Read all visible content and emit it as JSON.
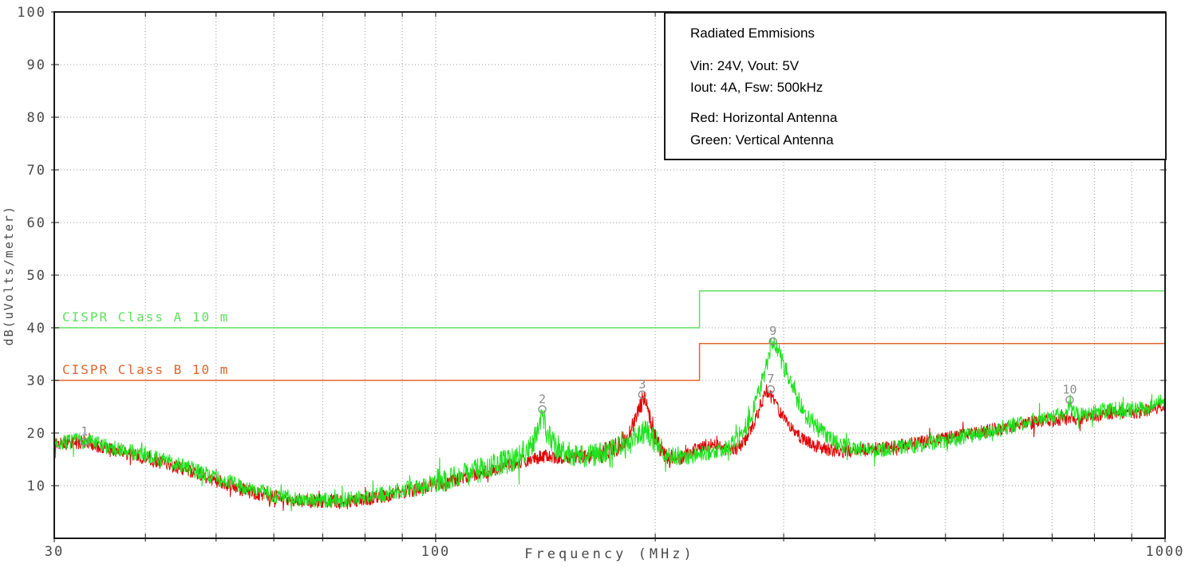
{
  "chart_data": {
    "type": "line",
    "title": "Radiated Emmisions",
    "info_box": {
      "title": "Radiated Emmisions",
      "lines": [
        "Vin: 24V, Vout: 5V",
        "Iout: 4A, Fsw: 500kHz",
        "Red: Horizontal Antenna",
        "Green: Vertical Antenna"
      ]
    },
    "x_axis": {
      "label": "Frequency (MHz)",
      "scale": "log",
      "min": 30,
      "max": 1000,
      "tick_labels": [
        30,
        100,
        1000
      ],
      "grid": [
        40,
        50,
        60,
        70,
        80,
        90,
        100,
        200,
        300,
        400,
        500,
        600,
        700,
        800,
        900
      ]
    },
    "y_axis": {
      "label": "dB(uVolts/meter)",
      "min": 0,
      "max": 100,
      "tick_labels": [
        10,
        20,
        30,
        40,
        50,
        60,
        70,
        80,
        90,
        100
      ],
      "grid": [
        10,
        20,
        30,
        40,
        50,
        60,
        70,
        80,
        90
      ]
    },
    "colors": {
      "grid": "#999999",
      "axis_text": "#4a4a4a",
      "border": "#1a1a1a",
      "marker": "#8c8c8c",
      "red_trace": "#e00000",
      "green_trace": "#1de21d",
      "cispr_a": "#5fe05f",
      "cispr_b": "#e0662e"
    },
    "limits": [
      {
        "id": "cispr-class-a",
        "name": "CISPR Class A 10 m",
        "color": "#5fe05f",
        "points": [
          [
            30,
            40
          ],
          [
            230,
            40
          ],
          [
            230,
            47
          ],
          [
            1000,
            47
          ]
        ]
      },
      {
        "id": "cispr-class-b",
        "name": "CISPR Class B 10 m",
        "color": "#e0662e",
        "points": [
          [
            30,
            30
          ],
          [
            230,
            30
          ],
          [
            230,
            37
          ],
          [
            1000,
            37
          ]
        ]
      }
    ],
    "series": [
      {
        "id": "horizontal-antenna",
        "name": "Horizontal Antenna",
        "color": "#e00000",
        "seed": 13,
        "noise": 1.3,
        "noise_zones": [
          {
            "from": 168,
            "to": 212,
            "mult": 1.5
          }
        ],
        "anchors": [
          [
            30,
            18
          ],
          [
            33,
            18.2
          ],
          [
            36,
            16.8
          ],
          [
            40,
            15.2
          ],
          [
            45,
            13.2
          ],
          [
            50,
            11
          ],
          [
            55,
            9
          ],
          [
            60,
            7.8
          ],
          [
            65,
            7.2
          ],
          [
            70,
            6.9
          ],
          [
            75,
            7
          ],
          [
            80,
            7.4
          ],
          [
            85,
            8
          ],
          [
            90,
            8.8
          ],
          [
            95,
            9.4
          ],
          [
            100,
            10.2
          ],
          [
            110,
            11.6
          ],
          [
            120,
            13
          ],
          [
            130,
            14.4
          ],
          [
            140,
            15.6
          ],
          [
            150,
            15.4
          ],
          [
            160,
            15.6
          ],
          [
            170,
            16.2
          ],
          [
            178,
            17.5
          ],
          [
            184,
            19.5
          ],
          [
            189,
            23
          ],
          [
            193,
            27
          ],
          [
            196,
            24
          ],
          [
            200,
            19.5
          ],
          [
            205,
            16.2
          ],
          [
            210,
            15
          ],
          [
            216,
            15.2
          ],
          [
            224,
            16.2
          ],
          [
            232,
            17.6
          ],
          [
            240,
            18
          ],
          [
            248,
            17
          ],
          [
            256,
            16.6
          ],
          [
            264,
            18
          ],
          [
            272,
            21.5
          ],
          [
            279,
            25.5
          ],
          [
            284,
            28
          ],
          [
            290,
            26.5
          ],
          [
            297,
            24
          ],
          [
            305,
            21.5
          ],
          [
            315,
            19.5
          ],
          [
            327,
            18
          ],
          [
            340,
            17
          ],
          [
            355,
            16.6
          ],
          [
            375,
            16.6
          ],
          [
            400,
            17
          ],
          [
            430,
            17.6
          ],
          [
            460,
            18.2
          ],
          [
            500,
            19
          ],
          [
            540,
            19.8
          ],
          [
            580,
            20.6
          ],
          [
            620,
            21.4
          ],
          [
            660,
            22
          ],
          [
            700,
            22.4
          ],
          [
            740,
            22.8
          ],
          [
            780,
            23
          ],
          [
            820,
            23.6
          ],
          [
            860,
            24
          ],
          [
            900,
            23.6
          ],
          [
            940,
            24.2
          ],
          [
            970,
            24.8
          ],
          [
            1000,
            25.6
          ]
        ]
      },
      {
        "id": "vertical-antenna",
        "name": "Vertical Antenna",
        "color": "#1de21d",
        "seed": 7,
        "noise": 1.5,
        "noise_zones": [
          {
            "from": 100,
            "to": 205,
            "mult": 1.6
          },
          {
            "from": 250,
            "to": 335,
            "mult": 1.25
          }
        ],
        "anchors": [
          [
            30,
            18.2
          ],
          [
            33,
            18.5
          ],
          [
            36,
            17.2
          ],
          [
            40,
            15.8
          ],
          [
            45,
            13.8
          ],
          [
            50,
            11.5
          ],
          [
            55,
            9.5
          ],
          [
            60,
            8.2
          ],
          [
            65,
            7.5
          ],
          [
            70,
            7.2
          ],
          [
            75,
            7.3
          ],
          [
            80,
            7.8
          ],
          [
            85,
            8.4
          ],
          [
            90,
            9.2
          ],
          [
            95,
            9.8
          ],
          [
            100,
            10.8
          ],
          [
            110,
            12.2
          ],
          [
            120,
            13.8
          ],
          [
            128,
            15
          ],
          [
            134,
            17
          ],
          [
            138,
            20
          ],
          [
            140,
            24.5
          ],
          [
            142,
            20
          ],
          [
            146,
            17.5
          ],
          [
            152,
            16.2
          ],
          [
            160,
            15.8
          ],
          [
            170,
            16.2
          ],
          [
            180,
            17.2
          ],
          [
            188,
            19
          ],
          [
            194,
            20.5
          ],
          [
            200,
            18.5
          ],
          [
            206,
            16
          ],
          [
            212,
            15.2
          ],
          [
            220,
            15.4
          ],
          [
            230,
            15.8
          ],
          [
            240,
            16.4
          ],
          [
            250,
            17.2
          ],
          [
            258,
            18.5
          ],
          [
            266,
            21
          ],
          [
            274,
            25
          ],
          [
            282,
            31
          ],
          [
            288,
            36
          ],
          [
            291,
            37.3
          ],
          [
            296,
            35
          ],
          [
            304,
            30.5
          ],
          [
            312,
            27
          ],
          [
            322,
            23.5
          ],
          [
            334,
            21
          ],
          [
            348,
            19
          ],
          [
            362,
            17.8
          ],
          [
            380,
            17
          ],
          [
            400,
            16.8
          ],
          [
            420,
            17
          ],
          [
            450,
            17.6
          ],
          [
            480,
            18.2
          ],
          [
            520,
            19
          ],
          [
            560,
            20
          ],
          [
            600,
            21
          ],
          [
            640,
            22
          ],
          [
            680,
            23
          ],
          [
            710,
            23.3
          ],
          [
            735,
            24
          ],
          [
            741,
            26
          ],
          [
            747,
            24
          ],
          [
            780,
            23.6
          ],
          [
            820,
            24.2
          ],
          [
            860,
            24.6
          ],
          [
            900,
            24.2
          ],
          [
            940,
            24.8
          ],
          [
            970,
            25.4
          ],
          [
            1000,
            26.3
          ]
        ]
      }
    ],
    "markers": [
      {
        "label": "1",
        "f_mhz": 33,
        "db": 18.3,
        "trace": "both"
      },
      {
        "label": "2",
        "f_mhz": 140,
        "db": 24.5,
        "trace": "vertical"
      },
      {
        "label": "3",
        "f_mhz": 192,
        "db": 27.3,
        "trace": "horizontal"
      },
      {
        "label": "9",
        "f_mhz": 290,
        "db": 37.4,
        "trace": "vertical"
      },
      {
        "label": "7",
        "f_mhz": 288,
        "db": 28.3,
        "trace": "horizontal"
      },
      {
        "label": "10",
        "f_mhz": 740,
        "db": 26.3,
        "trace": "vertical"
      }
    ]
  }
}
